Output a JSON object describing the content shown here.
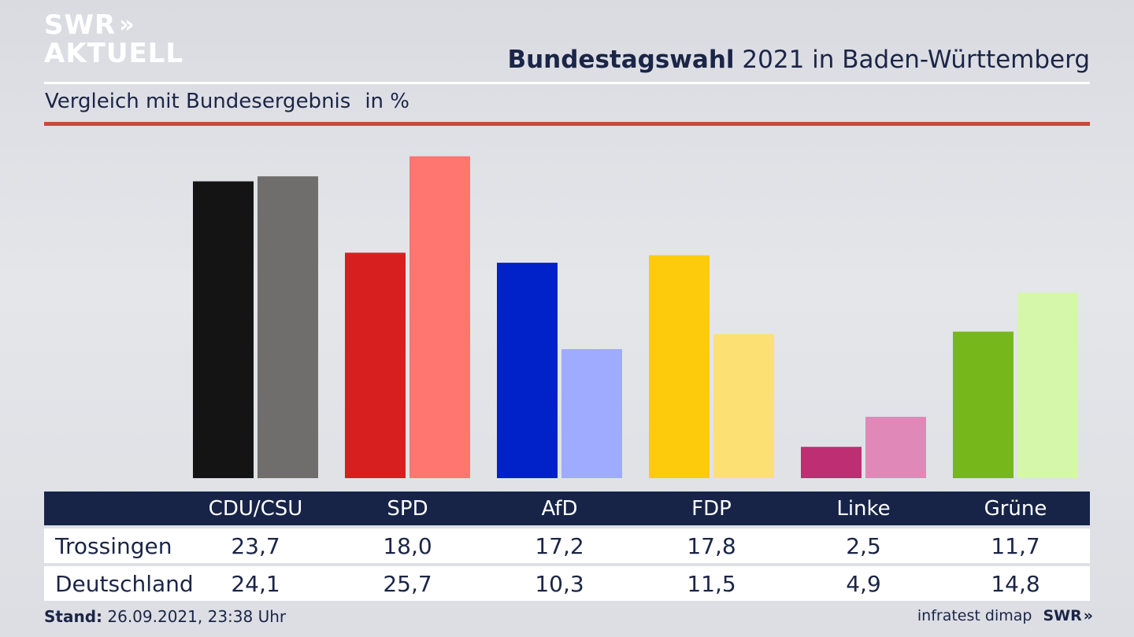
{
  "branding": {
    "logo_line1": "SWR",
    "logo_line2": "AKTUELL",
    "logo_chevrons": "»",
    "footer_logo": "SWR",
    "footer_chevrons": "»"
  },
  "header": {
    "title_bold": "Bundestagswahl",
    "title_rest": " 2021 in Baden-Württemberg",
    "subtitle": "Vergleich mit Bundesergebnis",
    "unit": "in %"
  },
  "chart_data": {
    "type": "bar",
    "categories": [
      "CDU/CSU",
      "SPD",
      "AfD",
      "FDP",
      "Linke",
      "Grüne"
    ],
    "series": [
      {
        "name": "Trossingen",
        "values": [
          23.7,
          18.0,
          17.2,
          17.8,
          2.5,
          11.7
        ],
        "colors": [
          "#141414",
          "#d71f1f",
          "#0022c8",
          "#fdcb0b",
          "#bd2f72",
          "#76b81c"
        ]
      },
      {
        "name": "Deutschland",
        "values": [
          24.1,
          25.7,
          10.3,
          11.5,
          4.9,
          14.8
        ],
        "colors": [
          "#706e6c",
          "#ff7570",
          "#9fabff",
          "#fde073",
          "#e089b8",
          "#d5f7a9"
        ]
      }
    ],
    "ylim": [
      0,
      26.5
    ],
    "grid": false,
    "legend": "table-below"
  },
  "table": {
    "headers": [
      "CDU/CSU",
      "SPD",
      "AfD",
      "FDP",
      "Linke",
      "Grüne"
    ],
    "rows": [
      {
        "label": "Trossingen",
        "values": [
          "23,7",
          "18,0",
          "17,2",
          "17,8",
          "2,5",
          "11,7"
        ]
      },
      {
        "label": "Deutschland",
        "values": [
          "24,1",
          "25,7",
          "10,3",
          "11,5",
          "4,9",
          "14,8"
        ]
      }
    ]
  },
  "footer": {
    "stand_label": "Stand:",
    "stand_value": " 26.09.2021, 23:38 Uhr",
    "source": "infratest dimap"
  }
}
